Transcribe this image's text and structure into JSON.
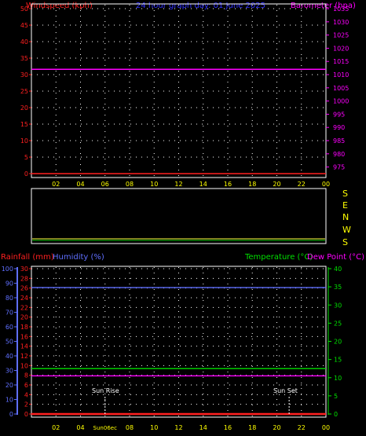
{
  "header": {
    "left_label": "Windspeed (kph)",
    "title": "24 hour graph day:  01 June 2025",
    "right_label": "Barometer (hpa)"
  },
  "bottom_header": {
    "rain_label": "Rainfall (mm)",
    "humidity_label": "Humidity (%)",
    "temp_label": "Temperature (°C)",
    "dew_label": "Dew Point (°C)"
  },
  "colors": {
    "windspeed": "#ff2020",
    "title": "#3030ff",
    "barometer": "#ff00ff",
    "rainfall": "#ff2020",
    "humidity": "#5f6fff",
    "temperature": "#00e000",
    "dewpoint": "#ff00ff",
    "time_axis": "#ffff00",
    "grid": "#ffffff",
    "direction_line": "#ffff40"
  },
  "direction_labels": [
    "S",
    "E",
    "N",
    "W",
    "S"
  ],
  "sun": {
    "rise_label": "Sun Rise",
    "set_label": "Sun Set",
    "rise_time": "06:00",
    "set_time": "21:00",
    "rise_time_label": "Sun06ec"
  },
  "chart_data": [
    {
      "type": "line",
      "title": "24 hour graph day:  01 June 2025",
      "x_ticks": [
        "02",
        "04",
        "06",
        "08",
        "10",
        "12",
        "14",
        "16",
        "18",
        "20",
        "22",
        "00"
      ],
      "grid": true,
      "y_left": {
        "label": "Windspeed (kph)",
        "ticks": [
          0,
          5,
          10,
          15,
          20,
          25,
          30,
          35,
          40,
          45,
          50
        ],
        "range": [
          0,
          50
        ]
      },
      "y_right": {
        "label": "Barometer (hpa)",
        "ticks": [
          975,
          980,
          985,
          990,
          995,
          1000,
          1005,
          1010,
          1015,
          1020,
          1025,
          1030,
          1035
        ],
        "range": [
          972.5,
          1035
        ]
      },
      "series": [
        {
          "name": "Windspeed (kph)",
          "axis": "left",
          "x": [
            0,
            24
          ],
          "y": [
            0,
            0
          ]
        },
        {
          "name": "Barometer (hpa)",
          "axis": "right",
          "x": [
            0,
            24
          ],
          "y": [
            1012,
            1012
          ]
        }
      ]
    },
    {
      "type": "line",
      "series": [
        {
          "name": "wind direction",
          "x": [
            0,
            24
          ],
          "y": [
            0.92,
            0.92
          ]
        }
      ]
    },
    {
      "type": "line",
      "x_ticks": [
        "02",
        "04",
        "06",
        "08",
        "10",
        "12",
        "14",
        "16",
        "18",
        "20",
        "22",
        "00"
      ],
      "grid": true,
      "y_rain": {
        "label": "Rainfall (mm)",
        "ticks": [
          0,
          2,
          4,
          6,
          8,
          10,
          12,
          14,
          16,
          18,
          20,
          22,
          24,
          26,
          28,
          30
        ],
        "range": [
          0,
          30
        ]
      },
      "y_humidity": {
        "label": "Humidity (%)",
        "ticks": [
          0,
          10,
          20,
          30,
          40,
          50,
          60,
          70,
          80,
          90,
          100
        ],
        "range": [
          0,
          100
        ]
      },
      "y_temp": {
        "label": "Temperature (°C)",
        "ticks": [
          0,
          5,
          10,
          15,
          20,
          25,
          30,
          35,
          40
        ],
        "range": [
          0,
          40
        ]
      },
      "series": [
        {
          "name": "Rainfall (mm)",
          "axis": "rain",
          "x": [
            0,
            24
          ],
          "y": [
            0,
            0
          ]
        },
        {
          "name": "Humidity (%)",
          "axis": "humidity",
          "x": [
            0,
            24
          ],
          "y": [
            87,
            87
          ]
        },
        {
          "name": "Temperature (°C)",
          "axis": "temp",
          "x": [
            0,
            24
          ],
          "y": [
            12.5,
            12.5
          ]
        },
        {
          "name": "Dew Point (°C)",
          "axis": "temp",
          "x": [
            0,
            24
          ],
          "y": [
            10.5,
            10.5
          ]
        }
      ]
    }
  ]
}
